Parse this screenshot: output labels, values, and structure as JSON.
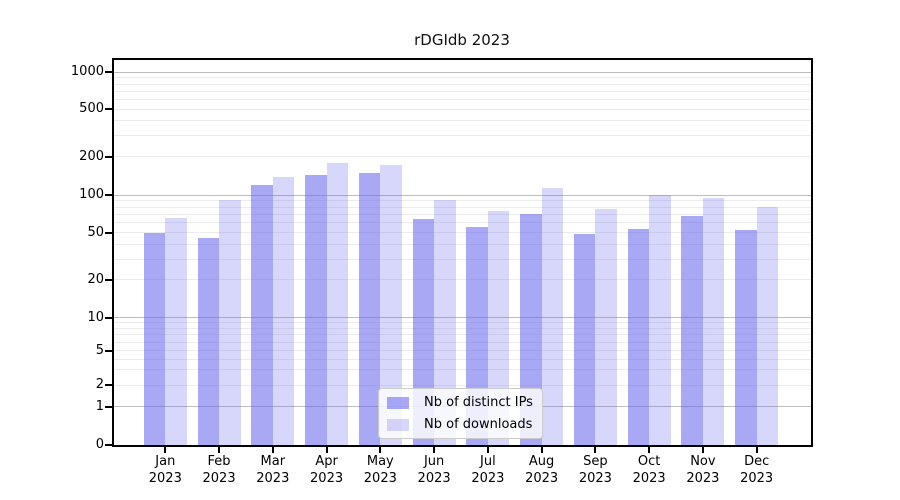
{
  "figure": {
    "title": "rDGIdb 2023",
    "background": "#ffffff"
  },
  "chart_data": {
    "type": "bar",
    "title": "rDGIdb 2023",
    "categories": [
      "Jan",
      "Feb",
      "Mar",
      "Apr",
      "May",
      "Jun",
      "Jul",
      "Aug",
      "Sep",
      "Oct",
      "Nov",
      "Dec"
    ],
    "year_label": "2023",
    "series": [
      {
        "name": "Nb of distinct IPs",
        "color": "#a7a7f3",
        "base_color": "#6666ee",
        "alpha": 0.57,
        "values": [
          50,
          45,
          120,
          143,
          148,
          64,
          56,
          70,
          49,
          54,
          68,
          53
        ]
      },
      {
        "name": "Nb of downloads",
        "color": "#d9d9f8",
        "base_color": "#6666ee",
        "alpha": 0.26,
        "values": [
          66,
          91,
          139,
          180,
          171,
          91,
          74,
          113,
          78,
          100,
          95,
          80
        ]
      }
    ],
    "y_axis": {
      "scale": "symlog",
      "tick_values": [
        0,
        1,
        2,
        5,
        10,
        20,
        50,
        100,
        200,
        500,
        1000
      ],
      "tick_labels": [
        "0",
        "1",
        "2",
        "5",
        "10",
        "20",
        "50",
        "100",
        "200",
        "500",
        "1000"
      ],
      "ylim": [
        0,
        1100
      ],
      "major_grid_values": [
        1,
        10,
        100,
        1000
      ]
    },
    "grid": "horizontal major and minor, on",
    "legend_position": "lower center inside plot"
  },
  "colors": {
    "major_grid": "#bdbdbd",
    "minor_grid": "#ececec",
    "spine": "#000000",
    "text": "#000000",
    "legend_border": "#cccccc",
    "legend_bg": "#ffffff"
  }
}
